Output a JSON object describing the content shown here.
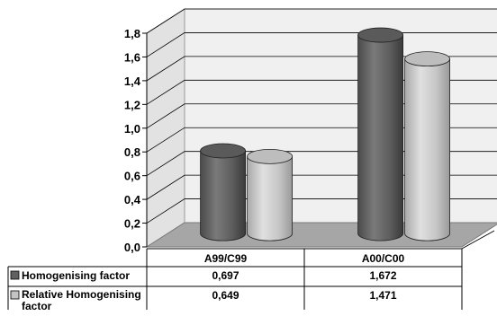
{
  "chart_data": {
    "type": "bar",
    "style": "3d-cylinder",
    "categories": [
      "A99/C99",
      "A00/C00"
    ],
    "series": [
      {
        "name": "Homogenising factor",
        "values": [
          0.697,
          1.672
        ],
        "display": [
          "0,697",
          "1,672"
        ],
        "color": "#616161"
      },
      {
        "name": "Relative Homogenising factor",
        "values": [
          0.649,
          1.471
        ],
        "display": [
          "0,649",
          "1,471"
        ],
        "color": "#c4c4c4"
      }
    ],
    "ylim": [
      0,
      1.8
    ],
    "y_ticks": [
      "0,0",
      "0,2",
      "0,4",
      "0,6",
      "0,8",
      "1,0",
      "1,2",
      "1,4",
      "1,6",
      "1,8"
    ],
    "grid": true,
    "data_table": true,
    "wall_color": "#f0f0f0",
    "floor_color": "#a6a6a6"
  }
}
